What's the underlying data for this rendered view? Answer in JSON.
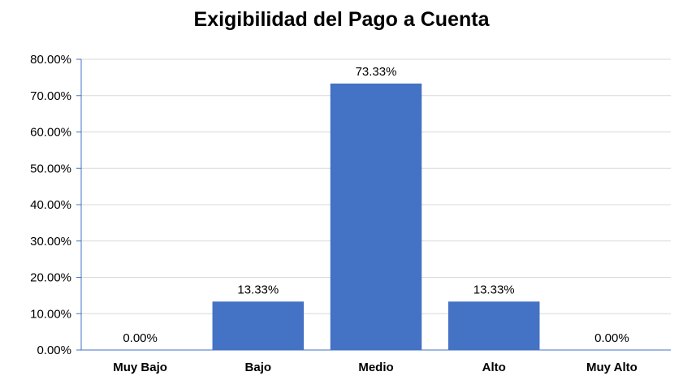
{
  "chart_data": {
    "type": "bar",
    "title": "Exigibilidad del Pago a Cuenta",
    "xlabel": "",
    "ylabel": "",
    "categories": [
      "Muy Bajo",
      "Bajo",
      "Medio",
      "Alto",
      "Muy Alto"
    ],
    "values": [
      0.0,
      13.33,
      73.33,
      13.33,
      0.0
    ],
    "data_labels": [
      "0.00%",
      "13.33%",
      "73.33%",
      "13.33%",
      "0.00%"
    ],
    "ylim": [
      0,
      80
    ],
    "yticks": [
      0,
      10,
      20,
      30,
      40,
      50,
      60,
      70,
      80
    ],
    "ytick_labels": [
      "0.00%",
      "10.00%",
      "20.00%",
      "30.00%",
      "40.00%",
      "50.00%",
      "60.00%",
      "70.00%",
      "80.00%"
    ],
    "grid": true,
    "legend": "none",
    "colors": {
      "bar": "#4472C4",
      "gridline": "#D9D9D9",
      "axis": "#4472C4"
    }
  }
}
